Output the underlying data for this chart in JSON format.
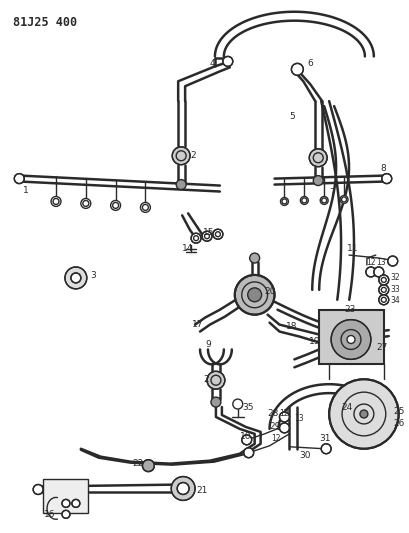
{
  "title": "81J25 400",
  "bg_color": "#ffffff",
  "line_color": "#2a2a2a",
  "fig_width": 4.09,
  "fig_height": 5.33,
  "dpi": 100
}
